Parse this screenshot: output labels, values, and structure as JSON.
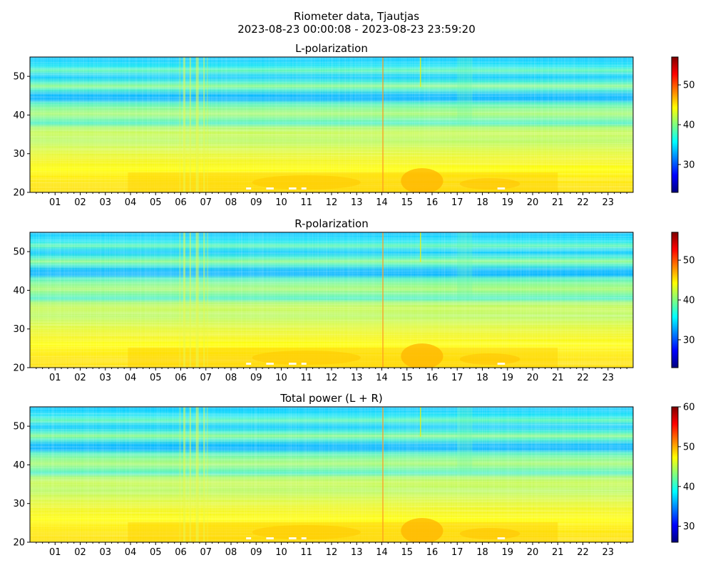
{
  "figure": {
    "suptitle_line1": "Riometer data, Tjautjas",
    "suptitle_line2": "2023-08-23 00:00:08 - 2023-08-23 23:59:20"
  },
  "colormap": {
    "name": "jet",
    "stops": [
      "#00007f",
      "#0000ff",
      "#007fff",
      "#00ffff",
      "#7fff7f",
      "#ffff00",
      "#ff7f00",
      "#ff0000",
      "#7f0000"
    ]
  },
  "chart_data": [
    {
      "type": "heatmap",
      "title": "L-polarization",
      "xlabel": "",
      "ylabel": "",
      "x_ticks": [
        "01",
        "02",
        "03",
        "04",
        "05",
        "06",
        "07",
        "08",
        "09",
        "10",
        "11",
        "12",
        "13",
        "14",
        "15",
        "16",
        "17",
        "18",
        "19",
        "20",
        "21",
        "22",
        "23"
      ],
      "x_range_hours": [
        0,
        24
      ],
      "ylim": [
        20,
        55
      ],
      "y_ticks": [
        20,
        30,
        40,
        50
      ],
      "colorbar": {
        "vmin": 23,
        "vmax": 57,
        "ticks": [
          30,
          40,
          50
        ]
      }
    },
    {
      "type": "heatmap",
      "title": "R-polarization",
      "xlabel": "",
      "ylabel": "",
      "x_ticks": [
        "01",
        "02",
        "03",
        "04",
        "05",
        "06",
        "07",
        "08",
        "09",
        "10",
        "11",
        "12",
        "13",
        "14",
        "15",
        "16",
        "17",
        "18",
        "19",
        "20",
        "21",
        "22",
        "23"
      ],
      "x_range_hours": [
        0,
        24
      ],
      "ylim": [
        20,
        55
      ],
      "y_ticks": [
        20,
        30,
        40,
        50
      ],
      "colorbar": {
        "vmin": 23,
        "vmax": 57,
        "ticks": [
          30,
          40,
          50
        ]
      }
    },
    {
      "type": "heatmap",
      "title": "Total power (L + R)",
      "xlabel": "",
      "ylabel": "",
      "x_ticks": [
        "01",
        "02",
        "03",
        "04",
        "05",
        "06",
        "07",
        "08",
        "09",
        "10",
        "11",
        "12",
        "13",
        "14",
        "15",
        "16",
        "17",
        "18",
        "19",
        "20",
        "21",
        "22",
        "23"
      ],
      "x_range_hours": [
        0,
        24
      ],
      "ylim": [
        20,
        55
      ],
      "y_ticks": [
        20,
        30,
        40,
        50
      ],
      "colorbar": {
        "vmin": 26,
        "vmax": 60,
        "ticks": [
          30,
          40,
          50,
          60
        ]
      }
    }
  ]
}
